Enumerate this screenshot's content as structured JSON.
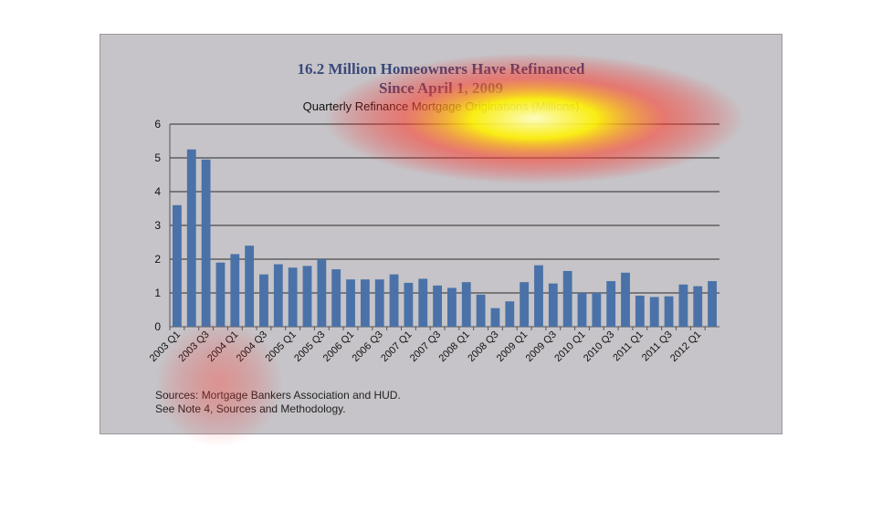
{
  "chart_data": {
    "type": "bar",
    "title": "16.2 Million Homeowners Have Refinanced",
    "title_line2": "Since April 1, 2009",
    "subtitle": "Quarterly Refinance Mortgage Originations (Millions)",
    "xlabel": "",
    "ylabel": "",
    "ylim": [
      0,
      6
    ],
    "yticks": [
      0,
      1,
      2,
      3,
      4,
      5,
      6
    ],
    "grid": true,
    "bar_color": "#4a72a8",
    "categories": [
      "2003 Q1",
      "2003 Q2",
      "2003 Q3",
      "2003 Q4",
      "2004 Q1",
      "2004 Q2",
      "2004 Q3",
      "2004 Q4",
      "2005 Q1",
      "2005 Q2",
      "2005 Q3",
      "2005 Q4",
      "2006 Q1",
      "2006 Q2",
      "2006 Q3",
      "2006 Q4",
      "2007 Q1",
      "2007 Q2",
      "2007 Q3",
      "2007 Q4",
      "2008 Q1",
      "2008 Q2",
      "2008 Q3",
      "2008 Q4",
      "2009 Q1",
      "2009 Q2",
      "2009 Q3",
      "2009 Q4",
      "2010 Q1",
      "2010 Q2",
      "2010 Q3",
      "2010 Q4",
      "2011 Q1",
      "2011 Q2",
      "2011 Q3",
      "2011 Q4",
      "2012 Q1",
      "2012 Q2"
    ],
    "tick_labels_shown": [
      "2003 Q1",
      "2003 Q3",
      "2004 Q1",
      "2004 Q3",
      "2005 Q1",
      "2005 Q3",
      "2006 Q1",
      "2006 Q3",
      "2007 Q1",
      "2007 Q3",
      "2008 Q1",
      "2008 Q3",
      "2009 Q1",
      "2009 Q3",
      "2010 Q1",
      "2010 Q3",
      "2011 Q1",
      "2011 Q3",
      "2012 Q1"
    ],
    "values": [
      3.6,
      5.25,
      4.95,
      1.9,
      2.15,
      2.4,
      1.55,
      1.85,
      1.75,
      1.8,
      2.0,
      1.7,
      1.4,
      1.4,
      1.4,
      1.55,
      1.3,
      1.42,
      1.22,
      1.15,
      1.32,
      0.95,
      0.55,
      0.75,
      1.32,
      1.82,
      1.28,
      1.65,
      1.0,
      1.0,
      1.35,
      1.6,
      0.92,
      0.88,
      0.9,
      1.25,
      1.2,
      1.35
    ]
  },
  "notes": {
    "line1": "Sources:  Mortgage Bankers Association and HUD.",
    "line2": "See Note 4, Sources and Methodology."
  }
}
